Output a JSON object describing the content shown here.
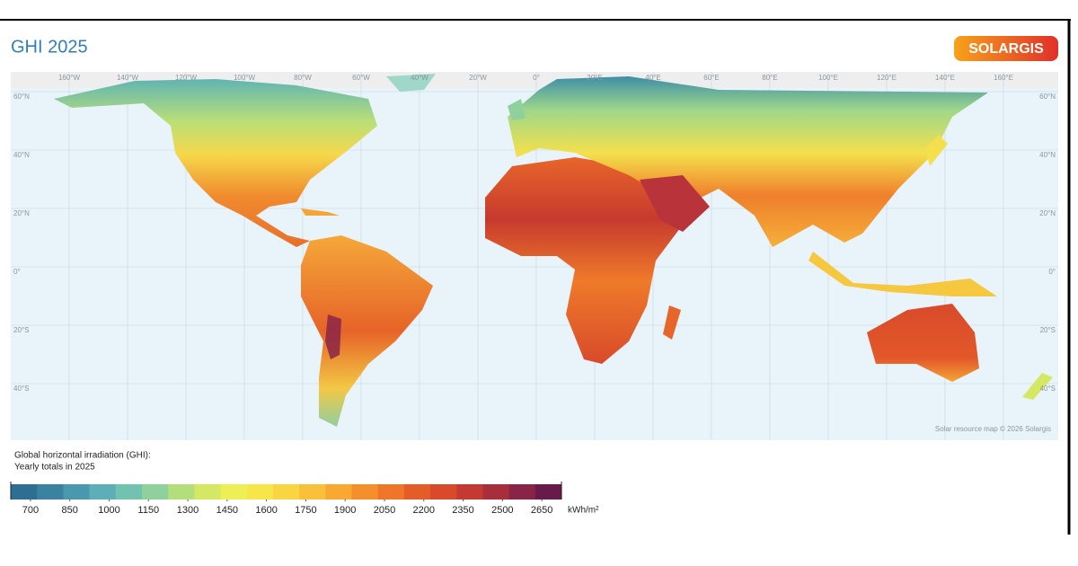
{
  "header": {
    "title": "GHI 2025",
    "logo": "SOLARGIS"
  },
  "map": {
    "lon_ticks": [
      {
        "value": -160,
        "label": "160°W"
      },
      {
        "value": -140,
        "label": "140°W"
      },
      {
        "value": -120,
        "label": "120°W"
      },
      {
        "value": -100,
        "label": "100°W"
      },
      {
        "value": -80,
        "label": "80°W"
      },
      {
        "value": -60,
        "label": "60°W"
      },
      {
        "value": -40,
        "label": "40°W"
      },
      {
        "value": -20,
        "label": "20°W"
      },
      {
        "value": 0,
        "label": "0°"
      },
      {
        "value": 20,
        "label": "20°E"
      },
      {
        "value": 40,
        "label": "40°E"
      },
      {
        "value": 60,
        "label": "60°E"
      },
      {
        "value": 80,
        "label": "80°E"
      },
      {
        "value": 100,
        "label": "100°E"
      },
      {
        "value": 120,
        "label": "120°E"
      },
      {
        "value": 140,
        "label": "140°E"
      },
      {
        "value": 160,
        "label": "160°E"
      }
    ],
    "lat_ticks": [
      {
        "value": 60,
        "label": "60°N"
      },
      {
        "value": 40,
        "label": "40°N"
      },
      {
        "value": 20,
        "label": "20°N"
      },
      {
        "value": 0,
        "label": "0°"
      },
      {
        "value": -20,
        "label": "20°S"
      },
      {
        "value": -40,
        "label": "40°S"
      }
    ],
    "credit": "Solar resource map © 2026 Solargis"
  },
  "legend": {
    "title_lines": [
      "Global horizontal irradiation (GHI):",
      "Yearly totals in 2025"
    ],
    "lim": [
      625,
      2725
    ],
    "ticks": [
      700,
      850,
      1000,
      1150,
      1300,
      1450,
      1600,
      1750,
      1900,
      2050,
      2200,
      2350,
      2500,
      2650
    ],
    "unit": "kWh/m²",
    "colors": [
      "#2e6e93",
      "#3a82a0",
      "#4a98ad",
      "#5cafb8",
      "#72c2b0",
      "#8fd19c",
      "#b2de7c",
      "#d4e863",
      "#edef55",
      "#f7e64a",
      "#fad542",
      "#fbc03a",
      "#f9a832",
      "#f58f2c",
      "#ef7528",
      "#e55d26",
      "#d84a2a",
      "#c43a33",
      "#a92e3c",
      "#8a2446",
      "#681a4a"
    ]
  }
}
